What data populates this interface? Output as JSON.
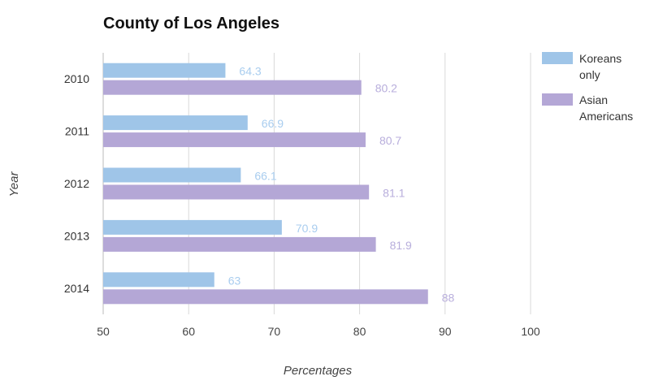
{
  "chart_data": {
    "type": "bar",
    "orientation": "horizontal",
    "title": "County of Los Angeles",
    "xlabel": "Percentages",
    "ylabel": "Year",
    "categories": [
      "2010",
      "2011",
      "2012",
      "2013",
      "2014"
    ],
    "xlim": [
      50,
      100
    ],
    "x_ticks": [
      "50",
      "60",
      "70",
      "80",
      "90",
      "100"
    ],
    "grid": true,
    "legend_position": "right",
    "series": [
      {
        "name": "Koreans only",
        "color": "#9fc5e8",
        "label_color": "#a9cdef",
        "values": [
          64.3,
          66.9,
          66.1,
          70.9,
          63
        ]
      },
      {
        "name": "Asian Americans",
        "color": "#b4a7d6",
        "label_color": "#b8aedc",
        "values": [
          80.2,
          80.7,
          81.1,
          81.9,
          88
        ]
      }
    ],
    "value_labels": [
      [
        "64.3",
        "66.9",
        "66.1",
        "70.9",
        "63"
      ],
      [
        "80.2",
        "80.7",
        "81.1",
        "81.9",
        "88"
      ]
    ],
    "legend_lines": [
      [
        "Koreans",
        "only"
      ],
      [
        "Asian",
        "Americans"
      ]
    ]
  }
}
